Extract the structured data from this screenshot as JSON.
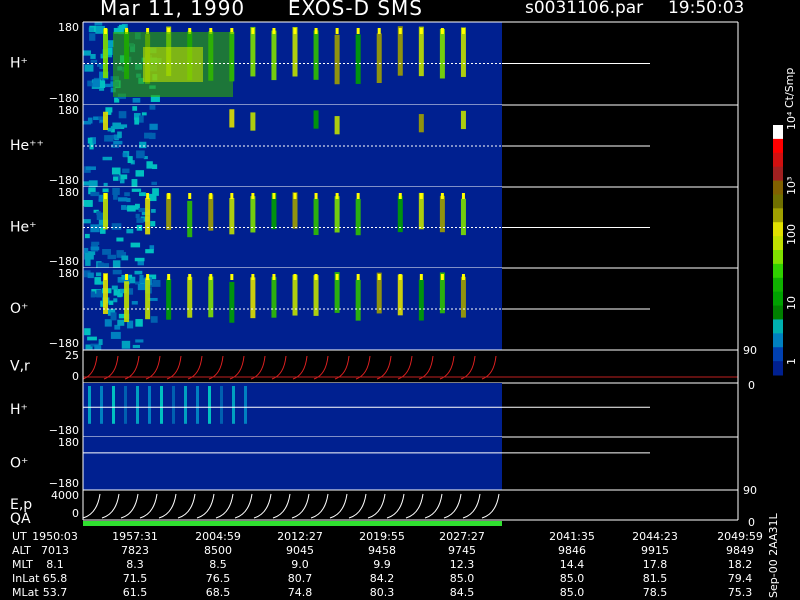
{
  "header": {
    "date": "Mar 11, 1990",
    "mission": "EXOS-D SMS",
    "file": "s0031106.par",
    "time": "19:50:03"
  },
  "colorbar": {
    "unit": "Ct/Smp",
    "ticks": [
      "10⁴",
      "10³",
      "100",
      "10",
      "1"
    ],
    "colors": [
      "#ffffff",
      "#ff0000",
      "#d01010",
      "#a02020",
      "#806000",
      "#707000",
      "#a0a000",
      "#e0e000",
      "#c0e000",
      "#80e000",
      "#30d000",
      "#10b000",
      "#00a000",
      "#008000",
      "#00b0b0",
      "#0080c0",
      "#0040b0",
      "#002090"
    ]
  },
  "panels": [
    {
      "label": "H⁺",
      "top_tick": "180",
      "bottom_tick": "−180"
    },
    {
      "label": "He⁺⁺",
      "top_tick": "180",
      "bottom_tick": "−180"
    },
    {
      "label": "He⁺",
      "top_tick": "180",
      "bottom_tick": "−180"
    },
    {
      "label": "O⁺",
      "top_tick": "180",
      "bottom_tick": "−180"
    },
    {
      "label": "V,r",
      "top_tick": "25",
      "bottom_tick": "0",
      "right_top": "90",
      "right_bottom": "0"
    },
    {
      "label": "H⁺",
      "top_tick": "",
      "bottom_tick": "−180"
    },
    {
      "label": "O⁺",
      "top_tick": "180",
      "bottom_tick": "−180"
    },
    {
      "label": "E,p",
      "label2": "QA",
      "top_tick": "4000",
      "bottom_tick": "0",
      "right_top": "90",
      "right_bottom": "0"
    }
  ],
  "table": {
    "rows": [
      {
        "label": "UT",
        "values": [
          "1950:03",
          "1957:31",
          "2004:59",
          "2012:27",
          "2019:55",
          "2027:27",
          "2041:35",
          "2044:23",
          "2049:59"
        ]
      },
      {
        "label": "ALT",
        "values": [
          "7013",
          "7823",
          "8500",
          "9045",
          "9458",
          "9745",
          "9846",
          "9915",
          "9849"
        ]
      },
      {
        "label": "MLT",
        "values": [
          "8.1",
          "8.3",
          "8.5",
          "9.0",
          "9.9",
          "12.3",
          "14.4",
          "17.8",
          "18.2"
        ]
      },
      {
        "label": "InLat",
        "values": [
          "65.8",
          "71.5",
          "76.5",
          "80.7",
          "84.2",
          "85.0",
          "85.0",
          "81.5",
          "79.4"
        ]
      },
      {
        "label": "MLat",
        "values": [
          "53.7",
          "61.5",
          "68.5",
          "74.8",
          "80.3",
          "84.5",
          "85.0",
          "78.5",
          "75.3"
        ]
      }
    ]
  },
  "footer_vertical": "Sep-00 2AA31L",
  "chart_data": {
    "type": "heatmap",
    "title": "Mar 11, 1990 EXOS-D SMS",
    "xlabel": "UT",
    "x": [
      "1950:03",
      "1957:31",
      "2004:59",
      "2012:27",
      "2019:55",
      "2027:27",
      "2041:35",
      "2044:23",
      "2049:59"
    ],
    "series": [
      {
        "name": "H+",
        "ylim": [
          -180,
          180
        ]
      },
      {
        "name": "He++",
        "ylim": [
          -180,
          180
        ]
      },
      {
        "name": "He+",
        "ylim": [
          -180,
          180
        ]
      },
      {
        "name": "O+",
        "ylim": [
          -180,
          180
        ]
      },
      {
        "name": "V,r",
        "ylim": [
          0,
          25
        ],
        "y2lim": [
          0,
          90
        ]
      },
      {
        "name": "H+",
        "ylim": [
          -180,
          180
        ]
      },
      {
        "name": "O+",
        "ylim": [
          -180,
          180
        ]
      },
      {
        "name": "E,p",
        "ylim": [
          0,
          4000
        ],
        "y2lim": [
          0,
          90
        ]
      }
    ],
    "colorscale_unit": "Ct/Smp",
    "colorscale_range": [
      1,
      10000
    ],
    "colorscale_log": true
  }
}
